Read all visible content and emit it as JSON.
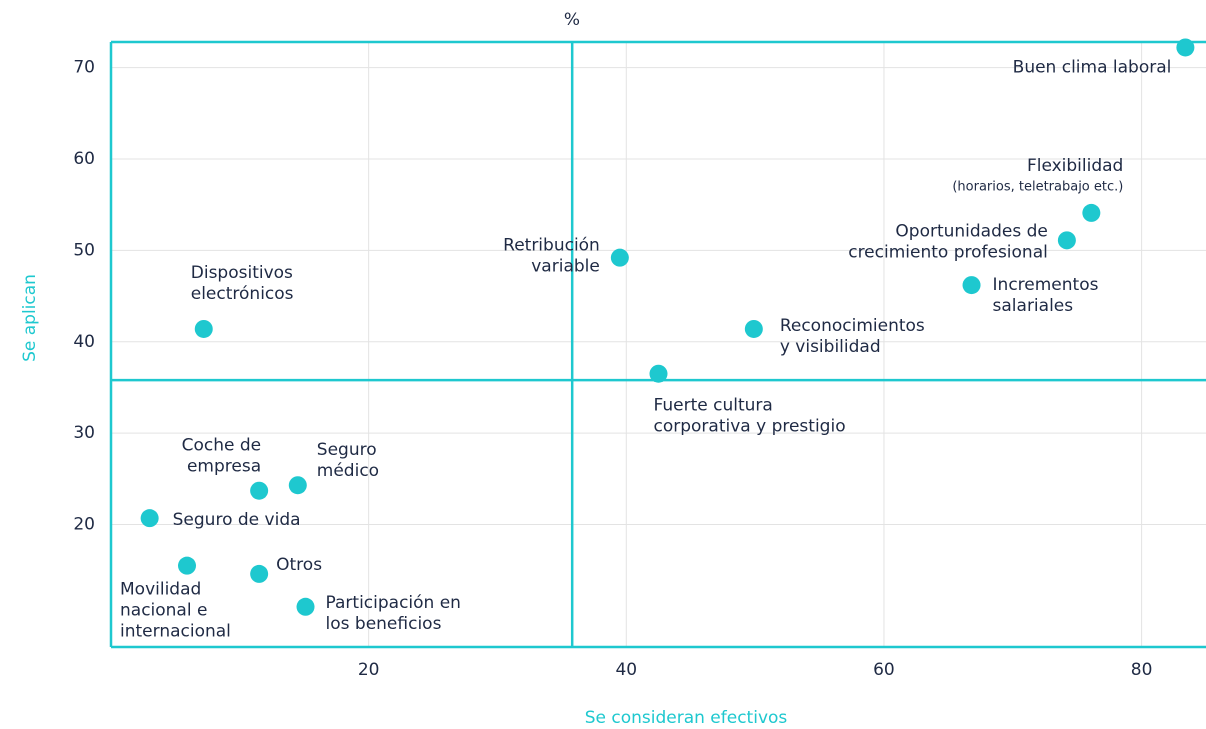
{
  "chart_data": {
    "type": "scatter",
    "title": "%",
    "x_label": "Se consideran efectivos",
    "y_label": "Se aplican",
    "labels": [
      [
        "Buen clima laboral"
      ],
      [
        "Flexibilidad",
        "(horarios, teletrabajo etc.)"
      ],
      [
        "Oportunidades de",
        "crecimiento profesional"
      ],
      [
        "Incrementos",
        "salariales"
      ],
      [
        "Reconocimientos",
        "y visibilidad"
      ],
      [
        "Retribución",
        "variable"
      ],
      [
        "Fuerte cultura",
        "corporativa y prestigio"
      ],
      [
        "Dispositivos",
        "electrónicos"
      ],
      [
        "Coche de",
        "empresa"
      ],
      [
        "Seguro",
        "médico"
      ],
      [
        "Seguro de vida"
      ],
      [
        "Movilidad",
        "nacional e",
        "internacional"
      ],
      [
        "Otros"
      ],
      [
        "Participación en",
        "los beneficios"
      ]
    ],
    "x": [
      83.4,
      76.1,
      74.2,
      66.8,
      49.9,
      39.5,
      42.5,
      7.2,
      11.5,
      14.5,
      3.0,
      5.9,
      11.5,
      15.1
    ],
    "y": [
      72.2,
      54.1,
      51.1,
      46.2,
      41.4,
      49.2,
      36.5,
      41.4,
      23.7,
      24.3,
      20.7,
      15.5,
      14.6,
      11.0
    ],
    "color": "#1ec8cf",
    "reference_x": 35.8,
    "reference_y": 35.8,
    "xlim": [
      0,
      85
    ],
    "ylim": [
      6.6,
      72.8
    ],
    "xticks": [
      20,
      40,
      60,
      80
    ],
    "yticks": [
      20,
      30,
      40,
      50,
      60,
      70
    ],
    "grid": true
  }
}
